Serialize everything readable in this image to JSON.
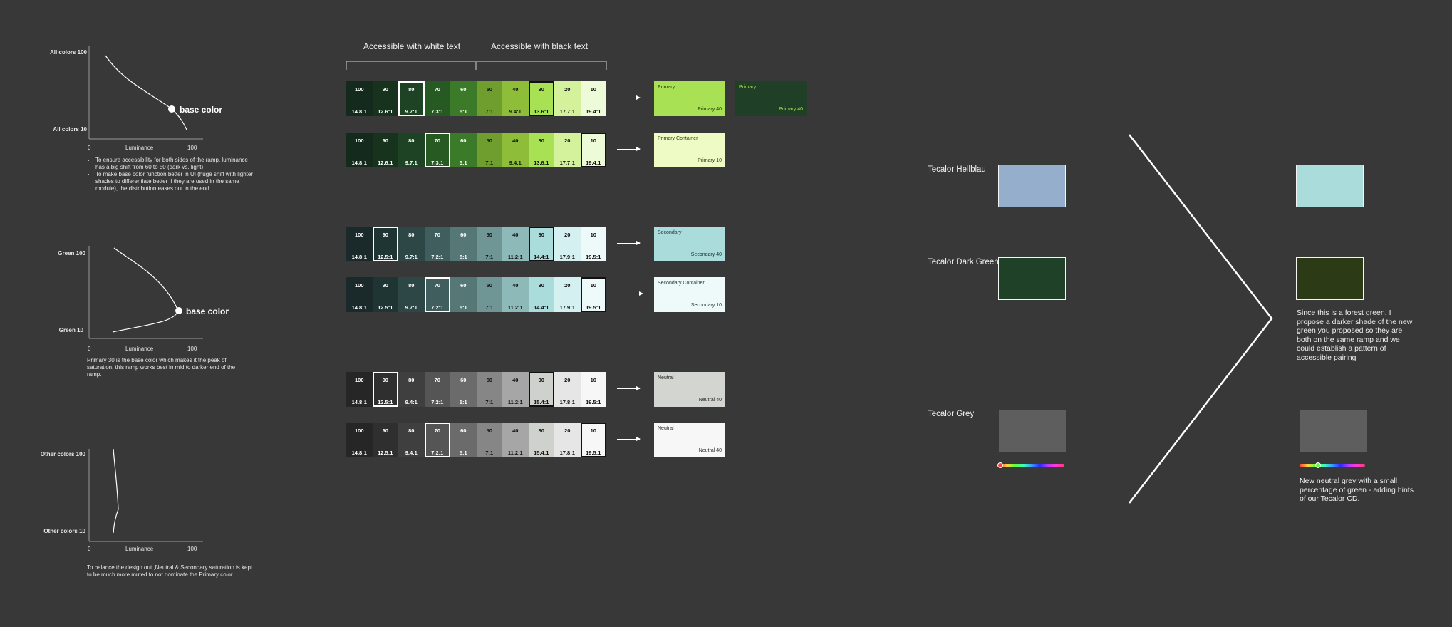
{
  "charts": [
    {
      "ytop": "All colors 100",
      "ybot": "All colors 10",
      "x0": "0",
      "xlabel": "Luminance",
      "x100": "100",
      "base": "base color",
      "notes": [
        "To ensure accessibility for both sides of the ramp, luminance has a big shift from 60 to 50 (dark vs. light)",
        "To make base color function better in UI (huge shift with lighter shades to differentiate better if they are used in the same module), the distribution eases out in the end."
      ]
    },
    {
      "ytop": "Green 100",
      "ybot": "Green 10",
      "x0": "0",
      "xlabel": "Luminance",
      "x100": "100",
      "base": "base color",
      "note": "Primary 30 is the base color which makes it the peak of saturation, this ramp works best in mid to darker end of the ramp."
    },
    {
      "ytop": "Other colors 100",
      "ybot": "Other colors 10",
      "x0": "0",
      "xlabel": "Luminance",
      "x100": "100",
      "note": "To balance the design out ,Neutral & Secondary saturation is kept to be much more muted to not dominate the Primary color"
    }
  ],
  "headers": {
    "white": "Accessible with white text",
    "black": "Accessible with black text"
  },
  "ramps": [
    {
      "tones": [
        "100",
        "90",
        "80",
        "70",
        "60",
        "50",
        "40",
        "30",
        "20",
        "10"
      ],
      "ratios": [
        "14.8:1",
        "12.6:1",
        "9.7:1",
        "7.3:1",
        "5:1",
        "7:1",
        "9.4:1",
        "13.6:1",
        "17.7:1",
        "19.4:1"
      ],
      "colors": [
        "#142a1c",
        "#17331d",
        "#1e4324",
        "#275a23",
        "#3a7a28",
        "#6f9e2f",
        "#8ebd3a",
        "#a9e155",
        "#d3f29b",
        "#eefbd8"
      ],
      "outline": {
        "2": "w",
        "7": "b"
      },
      "tiles": [
        {
          "title": "Primary",
          "sub": "Primary 40",
          "bg": "#a9e155",
          "fg": "#1c2e14"
        },
        {
          "title": "Primary",
          "sub": "Primary 40",
          "bg": "#1f3f26",
          "fg": "#a9e155"
        }
      ]
    },
    {
      "tones": [
        "100",
        "90",
        "80",
        "70",
        "60",
        "50",
        "40",
        "30",
        "20",
        "10"
      ],
      "ratios": [
        "14.8:1",
        "12.6:1",
        "9.7:1",
        "7.3:1",
        "5:1",
        "7:1",
        "9.4:1",
        "13.6:1",
        "17.7:1",
        "19.4:1"
      ],
      "colors": [
        "#142a1c",
        "#17331d",
        "#1e4324",
        "#275a23",
        "#3a7a28",
        "#6f9e2f",
        "#8ebd3a",
        "#a9e155",
        "#d3f29b",
        "#eefbd8"
      ],
      "outline": {
        "3": "w",
        "9": "b"
      },
      "tiles": [
        {
          "title": "Primary Container",
          "sub": "Primary 10",
          "bg": "#eefbc4",
          "fg": "#2d3d1c"
        }
      ]
    },
    {
      "tones": [
        "100",
        "90",
        "80",
        "70",
        "60",
        "50",
        "40",
        "30",
        "20",
        "10"
      ],
      "ratios": [
        "14.8:1",
        "12.5:1",
        "9.7:1",
        "7.2:1",
        "5:1",
        "7:1",
        "11.2:1",
        "14.4:1",
        "17.9:1",
        "19.5:1"
      ],
      "colors": [
        "#1a2a2a",
        "#1f3534",
        "#2c4746",
        "#3f5e5d",
        "#557877",
        "#6f9695",
        "#8dbab9",
        "#aadcdc",
        "#d4f0f0",
        "#eefafa"
      ],
      "outline": {
        "1": "w",
        "7": "b"
      },
      "tiles": [
        {
          "title": "Secondary",
          "sub": "Secondary 40",
          "bg": "#a9dcdb",
          "fg": "#1d3030"
        }
      ]
    },
    {
      "tones": [
        "100",
        "90",
        "80",
        "70",
        "60",
        "50",
        "40",
        "30",
        "20",
        "10"
      ],
      "ratios": [
        "14.8:1",
        "12.5:1",
        "9.7:1",
        "7.2:1",
        "5:1",
        "7:1",
        "11.2:1",
        "14.4:1",
        "17.9:1",
        "19.5:1"
      ],
      "colors": [
        "#1a2a2a",
        "#1f3534",
        "#2c4746",
        "#3f5e5d",
        "#557877",
        "#6f9695",
        "#8dbab9",
        "#aadcdc",
        "#d4f0f0",
        "#eefafa"
      ],
      "outline": {
        "3": "w",
        "9": "b"
      },
      "tiles": [
        {
          "title": "Secondary Container",
          "sub": "Secondary 10",
          "bg": "#eefafa",
          "fg": "#1d3030"
        }
      ]
    },
    {
      "tones": [
        "100",
        "90",
        "80",
        "70",
        "60",
        "50",
        "40",
        "30",
        "20",
        "10"
      ],
      "ratios": [
        "14.8:1",
        "12.5:1",
        "9.4:1",
        "7.2:1",
        "5:1",
        "7:1",
        "11.2:1",
        "15.4:1",
        "17.8:1",
        "19.5:1"
      ],
      "colors": [
        "#262626",
        "#2f2f2f",
        "#3f3f3f",
        "#555555",
        "#6b6b6b",
        "#868686",
        "#a6a6a6",
        "#cfd1cd",
        "#e6e6e6",
        "#f7f7f7"
      ],
      "outline": {
        "1": "w",
        "7": "b"
      },
      "tiles": [
        {
          "title": "Neutral",
          "sub": "Neutral 40",
          "bg": "#d3d5d0",
          "fg": "#2a2a2a"
        }
      ]
    },
    {
      "tones": [
        "100",
        "90",
        "80",
        "70",
        "60",
        "50",
        "40",
        "30",
        "20",
        "10"
      ],
      "ratios": [
        "14.8:1",
        "12.5:1",
        "9.4:1",
        "7.2:1",
        "5:1",
        "7:1",
        "11.2:1",
        "15.4:1",
        "17.8:1",
        "19.5:1"
      ],
      "colors": [
        "#262626",
        "#2f2f2f",
        "#3f3f3f",
        "#555555",
        "#6b6b6b",
        "#868686",
        "#a6a6a6",
        "#cfd1cd",
        "#e6e6e6",
        "#f7f7f7"
      ],
      "outline": {
        "3": "w",
        "9": "b"
      },
      "tiles": [
        {
          "title": "Neutral",
          "sub": "Neutral 40",
          "bg": "#f7f7f7",
          "fg": "#2a2a2a"
        }
      ]
    }
  ],
  "right": {
    "labels": [
      "Tecalor Hellblau",
      "Tecalor Dark Green",
      "Tecalor Grey"
    ],
    "old_colors": [
      "#95aecb",
      "#1f4127",
      "#5e5e5e"
    ],
    "new_colors": [
      "#abdcdc",
      "#2c3b15",
      "#5e5e5e"
    ],
    "note_green": "Since this is a forest green, I propose a darker shade of the new green you proposed so they are both on the same ramp and we could establish a pattern of accessible pairing",
    "note_grey": "New neutral grey with a small percentage of green - adding hints of our Tecalor CD."
  }
}
